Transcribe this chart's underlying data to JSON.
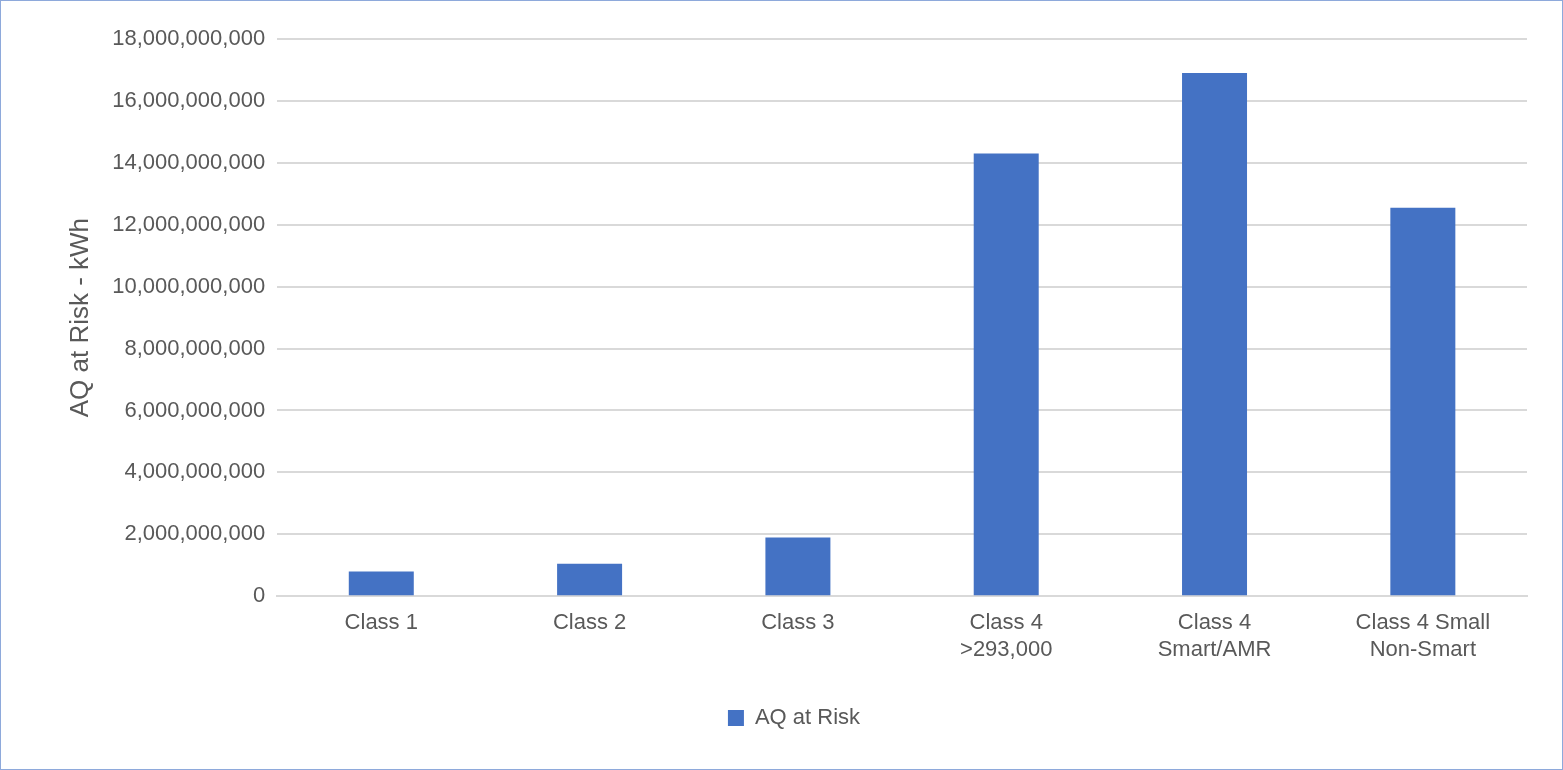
{
  "chart_data": {
    "type": "bar",
    "ylabel": "AQ at Risk - kWh",
    "categories": [
      "Class 1",
      "Class 2",
      "Class 3",
      "Class 4 >293,000",
      "Class 4 Smart/AMR",
      "Class 4 Small Non-Smart"
    ],
    "series": [
      {
        "name": "AQ at Risk",
        "color": "#4472c4",
        "values": [
          800000000,
          1050000000,
          1900000000,
          14300000000,
          16900000000,
          12550000000
        ]
      }
    ],
    "ylim": [
      0,
      18000000000
    ],
    "yticks": [
      0,
      {
        "value": 2000000000,
        "label": "2,000,000,000"
      },
      {
        "value": 4000000000,
        "label": "4,000,000,000"
      },
      {
        "value": 6000000000,
        "label": "6,000,000,000"
      },
      {
        "value": 8000000000,
        "label": "8,000,000,000"
      },
      {
        "value": 10000000000,
        "label": "10,000,000,000"
      },
      {
        "value": 12000000000,
        "label": "12,000,000,000"
      },
      {
        "value": 14000000000,
        "label": "14,000,000,000"
      },
      {
        "value": 16000000000,
        "label": "16,000,000,000"
      },
      {
        "value": 18000000000,
        "label": "18,000,000,000"
      }
    ],
    "grid": "y",
    "legend": "bottom"
  }
}
